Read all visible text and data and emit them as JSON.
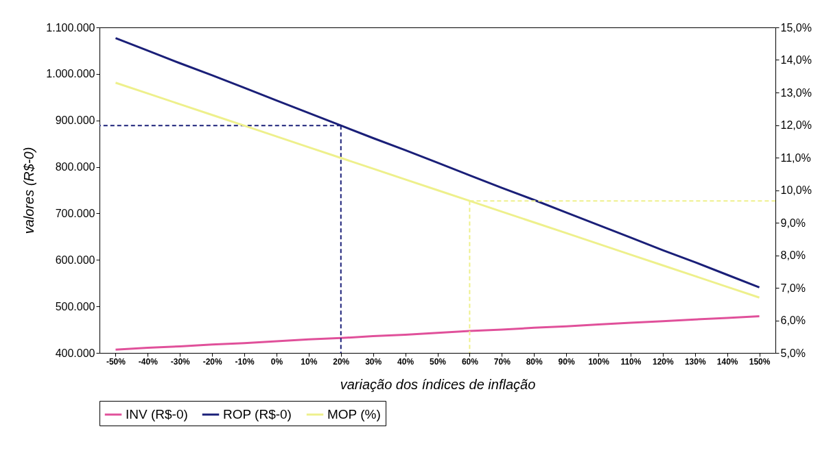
{
  "chart_data": {
    "type": "line",
    "xlabel": "variação dos índices de inflação",
    "ylabel": "valores (R$-0)",
    "categories": [
      "-50%",
      "-40%",
      "-30%",
      "-20%",
      "-10%",
      "0%",
      "10%",
      "20%",
      "30%",
      "40%",
      "50%",
      "60%",
      "70%",
      "80%",
      "90%",
      "100%",
      "110%",
      "120%",
      "130%",
      "140%",
      "150%"
    ],
    "series": [
      {
        "name": "INV (R$-0)",
        "color": "#e0509a",
        "values": [
          407000,
          411000,
          414000,
          418000,
          421000,
          425000,
          429000,
          432000,
          436000,
          439000,
          443000,
          447000,
          450000,
          454000,
          457000,
          461000,
          465000,
          468000,
          472000,
          475000,
          479000
        ]
      },
      {
        "name": "ROP (R$-0)",
        "color": "#1a1f78",
        "values": [
          1077000,
          1050000,
          1023000,
          997000,
          970000,
          943000,
          916000,
          889000,
          862000,
          836000,
          809000,
          782000,
          755000,
          729000,
          702000,
          675000,
          648000,
          621000,
          595000,
          568000,
          541000
        ]
      },
      {
        "name": "MOP (%)",
        "color": "#eef08c",
        "axis": "y2",
        "values": [
          13.3,
          12.97,
          12.64,
          12.31,
          11.98,
          11.65,
          11.32,
          10.99,
          10.66,
          10.33,
          10.0,
          9.67,
          9.34,
          9.01,
          8.68,
          8.35,
          8.02,
          7.69,
          7.36,
          7.03,
          6.7
        ]
      }
    ],
    "ylim": [
      400000,
      1100000
    ],
    "yticks": [
      {
        "value": 400000,
        "label": "400.000"
      },
      {
        "value": 500000,
        "label": "500.000"
      },
      {
        "value": 600000,
        "label": "600.000"
      },
      {
        "value": 700000,
        "label": "700.000"
      },
      {
        "value": 800000,
        "label": "800.000"
      },
      {
        "value": 900000,
        "label": "900.000"
      },
      {
        "value": 1000000,
        "label": "1.000.000"
      },
      {
        "value": 1100000,
        "label": "1.100.000"
      }
    ],
    "y2lim": [
      5,
      15
    ],
    "y2ticks": [
      {
        "value": 5,
        "label": "5,0%"
      },
      {
        "value": 6,
        "label": "6,0%"
      },
      {
        "value": 7,
        "label": "7,0%"
      },
      {
        "value": 8,
        "label": "8,0%"
      },
      {
        "value": 9,
        "label": "9,0%"
      },
      {
        "value": 10,
        "label": "10,0%"
      },
      {
        "value": 11,
        "label": "11,0%"
      },
      {
        "value": 12,
        "label": "12,0%"
      },
      {
        "value": 13,
        "label": "13,0%"
      },
      {
        "value": 14,
        "label": "14,0%"
      },
      {
        "value": 15,
        "label": "15,0%"
      }
    ],
    "ref_lines": [
      {
        "axis": "x",
        "value": "20%",
        "color": "#1a1f78",
        "line_style": "dashed"
      },
      {
        "axis": "y",
        "value": 889000,
        "color": "#1a1f78",
        "line_style": "dashed"
      },
      {
        "axis": "x",
        "value": "60%",
        "color": "#eef08c",
        "line_style": "dashed"
      },
      {
        "axis": "y2",
        "value": 9.67,
        "color": "#eef08c",
        "line_style": "dashed"
      }
    ],
    "grid": false,
    "legend": "bottom",
    "line_style": "solid"
  }
}
